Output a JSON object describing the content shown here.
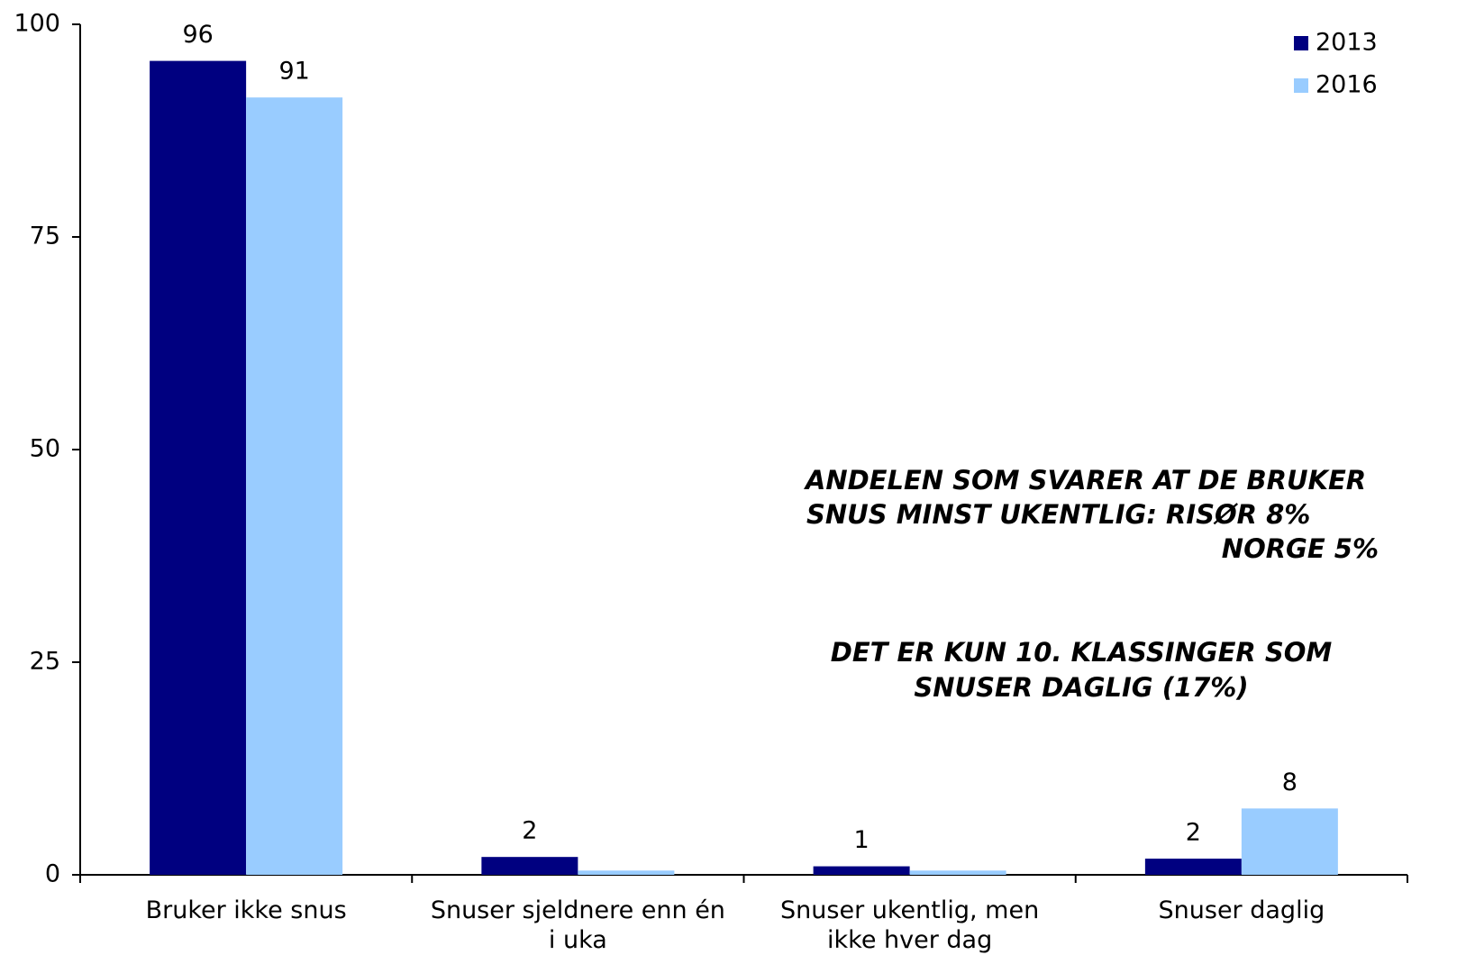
{
  "chart_data": {
    "type": "bar",
    "categories": [
      "Bruker ikke snus",
      "Snuser sjeldnere enn én i uka",
      "Snuser ukentlig, men ikke hver dag",
      "Snuser daglig"
    ],
    "series": [
      {
        "name": "2013",
        "color": "#000080",
        "values": [
          95.7,
          2.1,
          1.0,
          1.9
        ],
        "value_labels": [
          "96",
          "2",
          "1",
          "2"
        ]
      },
      {
        "name": "2016",
        "color": "#99ccff",
        "values": [
          91.4,
          0.5,
          0.5,
          7.8
        ],
        "value_labels": [
          "91",
          null,
          null,
          "8"
        ]
      }
    ],
    "ylim": [
      0,
      100
    ],
    "yticks": [
      0,
      25,
      50,
      75,
      100
    ],
    "grid": false,
    "legend": "top-right",
    "annotations": [
      [
        "ANDELEN SOM SVARER AT DE BRUKER",
        "SNUS MINST UKENTLIG:  RISØR 8%",
        "NORGE 5%"
      ],
      [
        "DET ER KUN 10. KLASSINGER SOM",
        "SNUSER DAGLIG (17%)"
      ]
    ]
  }
}
